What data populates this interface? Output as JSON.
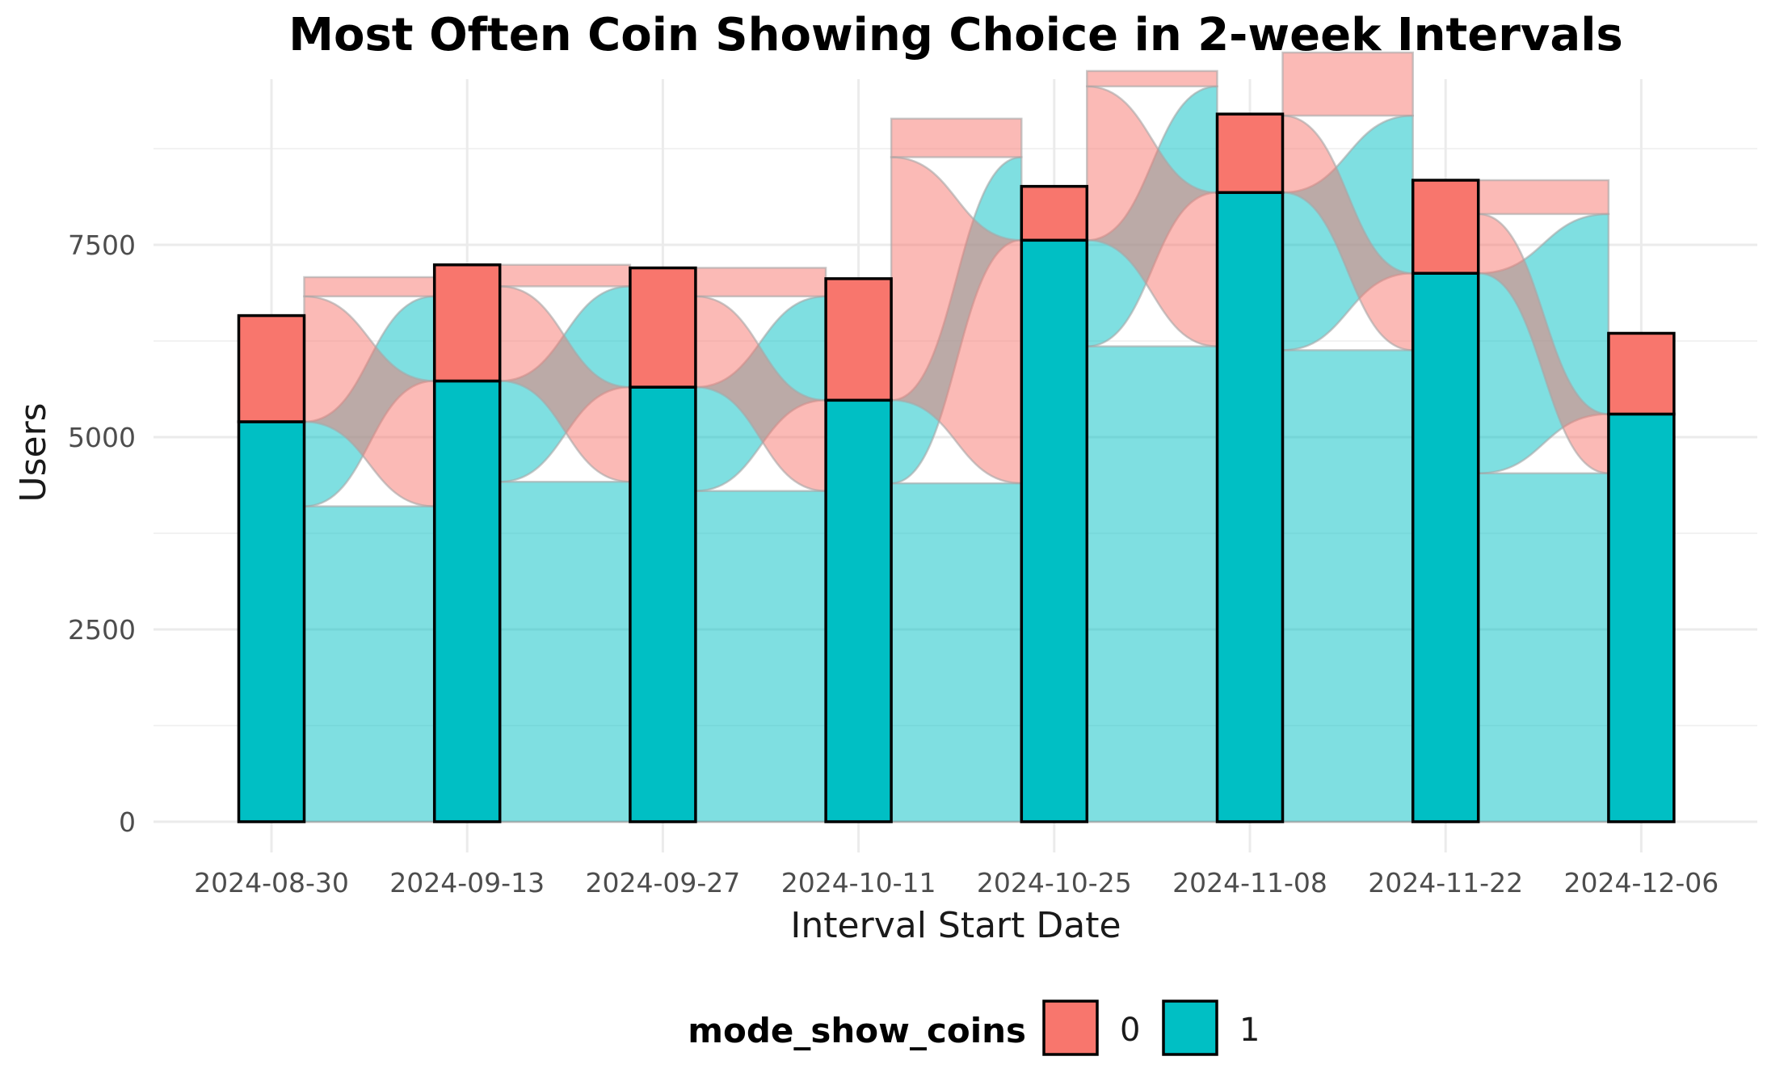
{
  "chart_data": {
    "type": "bar",
    "subtype": "alluvial",
    "title": "Most Often Coin Showing Choice in 2-week Intervals",
    "xlabel": "Interval Start Date",
    "ylabel": "Users",
    "ylim": [
      0,
      9700
    ],
    "yticks": [
      0,
      2500,
      5000,
      7500
    ],
    "categories": [
      "2024-08-30",
      "2024-09-13",
      "2024-09-27",
      "2024-10-11",
      "2024-10-25",
      "2024-11-08",
      "2024-11-22",
      "2024-12-06"
    ],
    "series": [
      {
        "name": "1",
        "color": "#00BFC4",
        "values": [
          5200,
          5730,
          5650,
          5480,
          7560,
          8180,
          7130,
          5300
        ]
      },
      {
        "name": "0",
        "color": "#F8766D",
        "values": [
          1380,
          1510,
          1550,
          1580,
          700,
          1020,
          1210,
          1050
        ]
      }
    ],
    "flows": [
      {
        "from": 0,
        "stay_1": 4100,
        "switch_1_to_0": 1100,
        "switch_0_to_1": 1630,
        "stay_0": 250
      },
      {
        "from": 1,
        "stay_1": 4420,
        "switch_1_to_0": 1310,
        "switch_0_to_1": 1230,
        "stay_0": 280
      },
      {
        "from": 2,
        "stay_1": 4300,
        "switch_1_to_0": 1350,
        "switch_0_to_1": 1180,
        "stay_0": 370
      },
      {
        "from": 3,
        "stay_1": 4400,
        "switch_1_to_0": 1080,
        "switch_0_to_1": 3160,
        "stay_0": 500
      },
      {
        "from": 4,
        "stay_1": 6180,
        "switch_1_to_0": 1380,
        "switch_0_to_1": 2000,
        "stay_0": 200
      },
      {
        "from": 5,
        "stay_1": 6130,
        "switch_1_to_0": 2050,
        "switch_0_to_1": 1000,
        "stay_0": 820
      },
      {
        "from": 6,
        "stay_1": 4530,
        "switch_1_to_0": 2600,
        "switch_0_to_1": 770,
        "stay_0": 440
      }
    ],
    "legend": {
      "title": "mode_show_coins",
      "position": "bottom",
      "entries": [
        {
          "label": "0",
          "color": "#F8766D"
        },
        {
          "label": "1",
          "color": "#00BFC4"
        }
      ]
    },
    "grid": true
  }
}
